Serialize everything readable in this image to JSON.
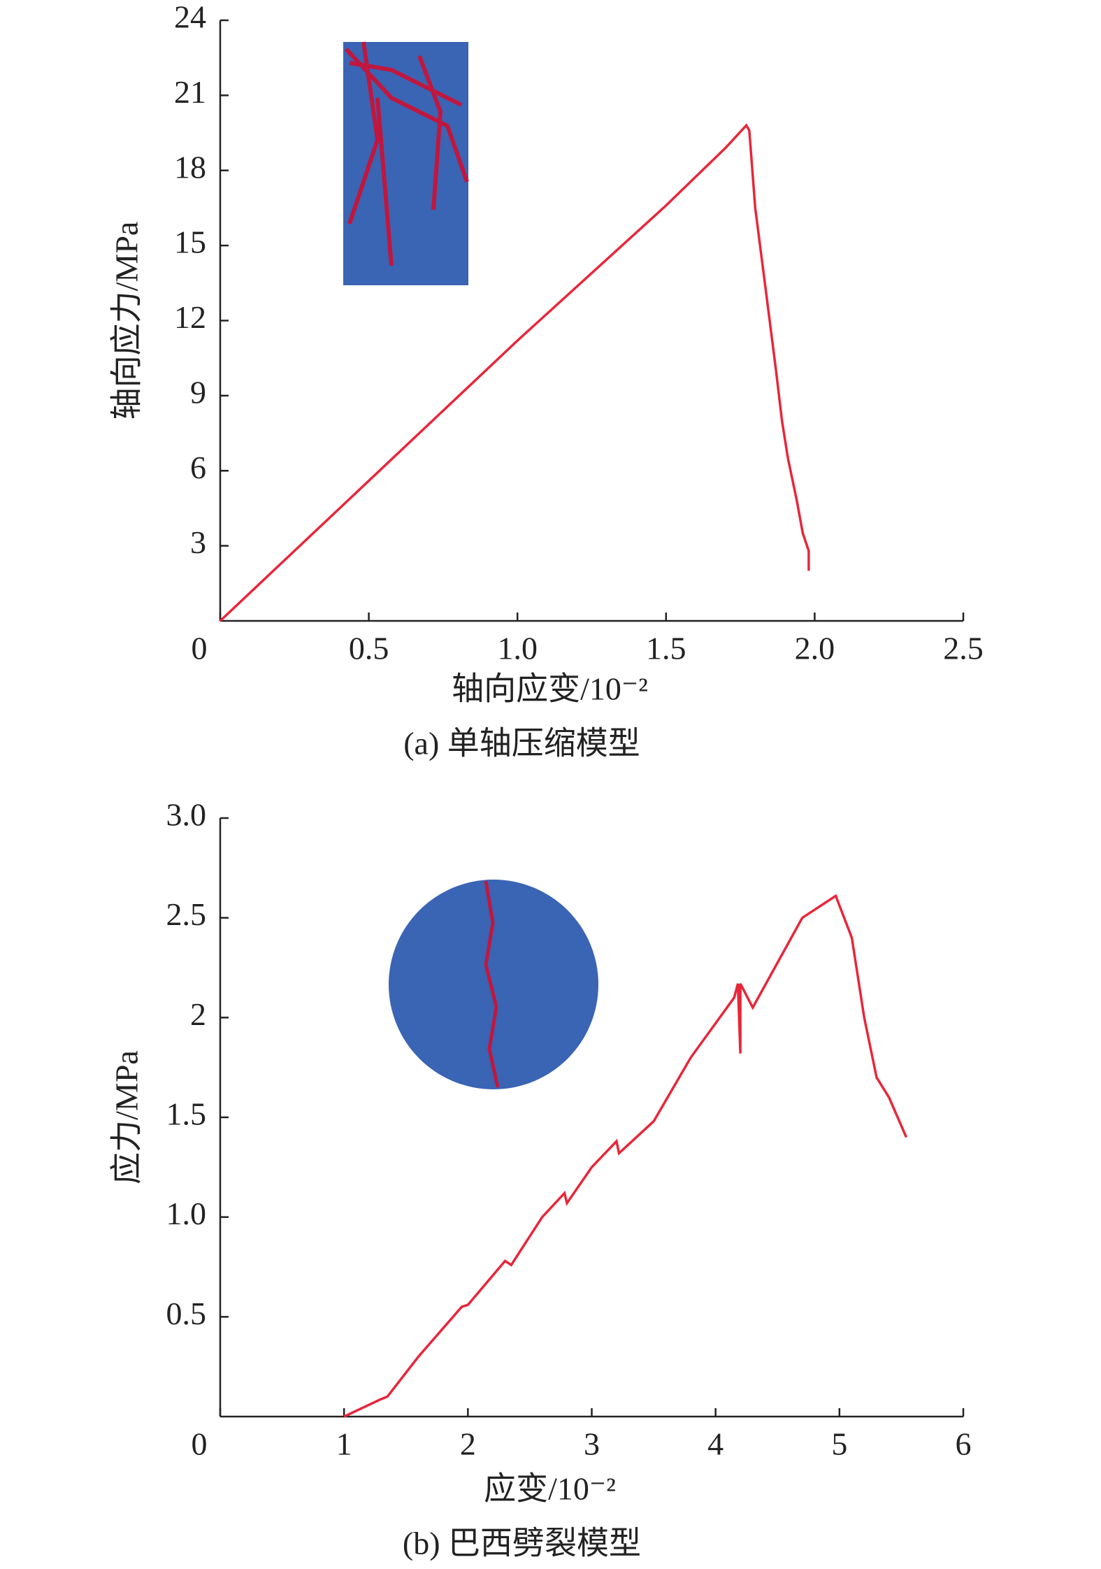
{
  "chart_data": [
    {
      "type": "line",
      "caption": "(a) 单轴压缩模型",
      "xlabel": "轴向应变/10⁻²",
      "ylabel": "轴向应力/MPa",
      "color": "#e8263a",
      "x": [
        0,
        0.5,
        1.0,
        1.5,
        1.7,
        1.77,
        1.78,
        1.8,
        1.84,
        1.87,
        1.89,
        1.91,
        1.94,
        1.96,
        1.98,
        1.98
      ],
      "values": [
        0,
        5.6,
        11.2,
        16.6,
        18.9,
        19.8,
        19.6,
        16.5,
        12.8,
        10.0,
        8.0,
        6.5,
        4.8,
        3.5,
        2.8,
        2.0
      ],
      "xlim": [
        0,
        2.5
      ],
      "ylim": [
        0,
        24
      ],
      "xticks": [
        0,
        {
          "value": 0.5,
          "label": "0.5"
        },
        {
          "value": 1.0,
          "label": "1.0"
        },
        {
          "value": 1.5,
          "label": "1.5"
        },
        {
          "value": 2.0,
          "label": "2.0"
        },
        {
          "value": 2.5,
          "label": "2.5"
        }
      ],
      "yticks": [
        3,
        6,
        9,
        12,
        15,
        18,
        21,
        24
      ]
    },
    {
      "type": "line",
      "caption": "(b) 巴西劈裂模型",
      "xlabel": "应变/10⁻²",
      "ylabel": "应力/MPa",
      "color": "#e8263a",
      "x": [
        1.0,
        1.29,
        1.35,
        1.6,
        1.95,
        2.0,
        2.3,
        2.35,
        2.6,
        2.78,
        2.8,
        3.0,
        3.2,
        3.22,
        3.5,
        3.8,
        4.15,
        4.18,
        4.2,
        4.2,
        4.3,
        4.7,
        4.97,
        5.1,
        5.2,
        5.3,
        5.4,
        5.54
      ],
      "values": [
        0,
        0.085,
        0.1,
        0.3,
        0.55,
        0.56,
        0.78,
        0.76,
        1.0,
        1.12,
        1.07,
        1.25,
        1.38,
        1.32,
        1.48,
        1.8,
        2.1,
        2.17,
        1.82,
        2.17,
        2.05,
        2.5,
        2.61,
        2.4,
        2.0,
        1.7,
        1.6,
        1.4
      ],
      "xlim": [
        0,
        6
      ],
      "ylim": [
        0,
        3.0
      ],
      "xticks": [
        0,
        1,
        2,
        3,
        4,
        5,
        6
      ],
      "yticks": [
        {
          "value": 0.5,
          "label": "0.5"
        },
        {
          "value": 1.0,
          "label": "1.0"
        },
        1.5,
        2.0,
        2.5,
        {
          "value": 3.0,
          "label": "3.0"
        }
      ]
    }
  ]
}
